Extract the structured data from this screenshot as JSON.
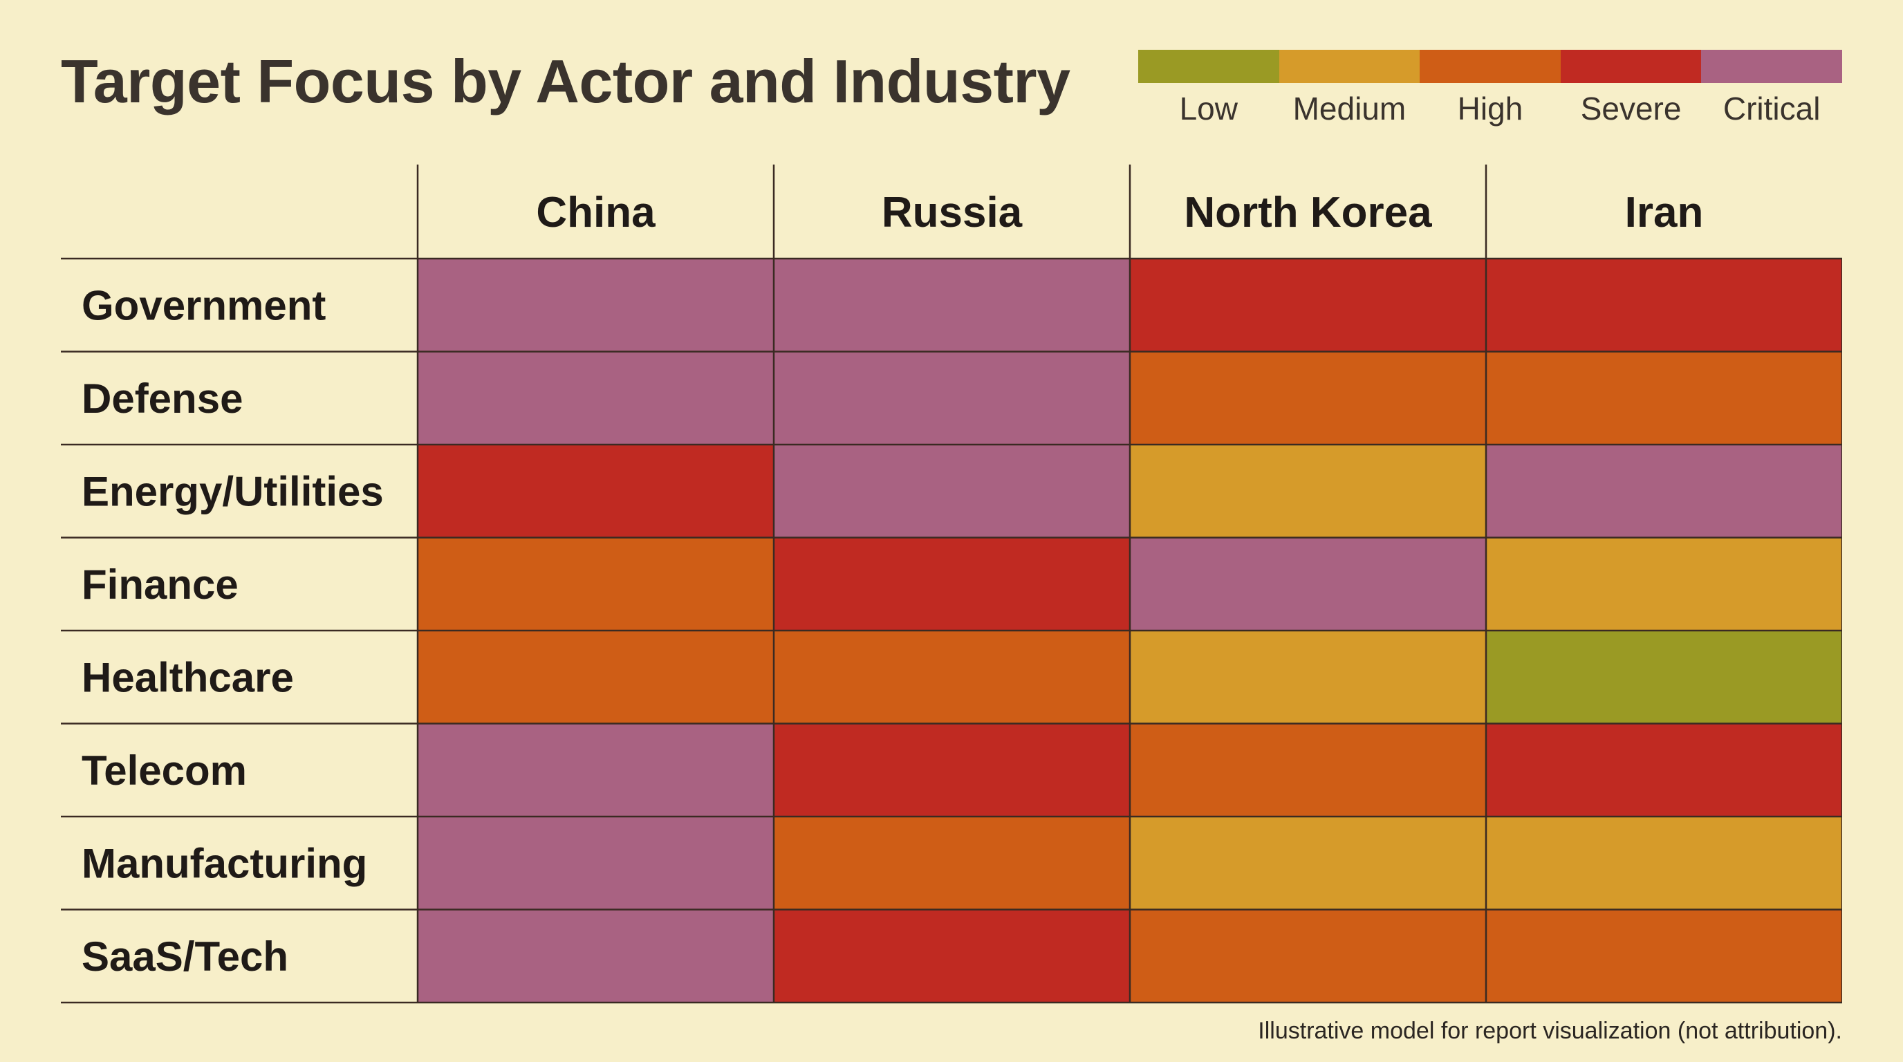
{
  "chart_data": {
    "type": "heatmap",
    "title": "Target Focus by Actor and Industry",
    "columns": [
      "China",
      "Russia",
      "North Korea",
      "Iran"
    ],
    "rows": [
      "Government",
      "Defense",
      "Energy/Utilities",
      "Finance",
      "Healthcare",
      "Telecom",
      "Manufacturing",
      "SaaS/Tech"
    ],
    "levels": [
      "Low",
      "Medium",
      "High",
      "Severe",
      "Critical"
    ],
    "level_colors": {
      "Low": "#9a9a24",
      "Medium": "#d69b2a",
      "High": "#cf5d16",
      "Severe": "#c02a22",
      "Critical": "#a96282"
    },
    "values": [
      [
        "Critical",
        "Critical",
        "Severe",
        "Severe"
      ],
      [
        "Critical",
        "Critical",
        "High",
        "High"
      ],
      [
        "Severe",
        "Critical",
        "Medium",
        "Critical"
      ],
      [
        "High",
        "Severe",
        "Critical",
        "Medium"
      ],
      [
        "High",
        "High",
        "Medium",
        "Low"
      ],
      [
        "Critical",
        "Severe",
        "High",
        "Severe"
      ],
      [
        "Critical",
        "High",
        "Medium",
        "Medium"
      ],
      [
        "Critical",
        "Severe",
        "High",
        "High"
      ]
    ],
    "legend_position": "top-right",
    "footnote": "Illustrative model for report visualization (not attribution)."
  }
}
